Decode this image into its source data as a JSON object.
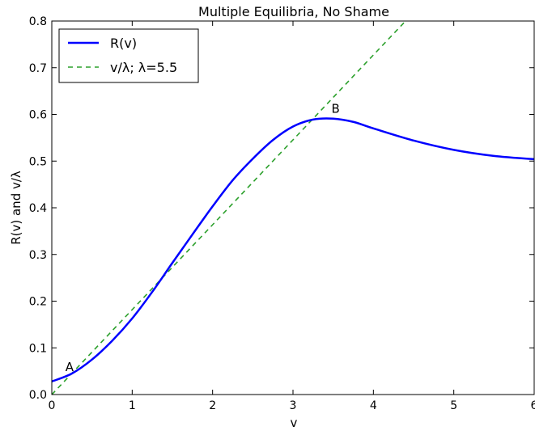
{
  "chart_data": {
    "type": "line",
    "title": "Multiple Equilibria, No Shame",
    "xlabel": "v",
    "ylabel": "R(v) and v/λ",
    "xlim": [
      0,
      6
    ],
    "ylim": [
      0,
      0.8
    ],
    "x_ticks": [
      0,
      1,
      2,
      3,
      4,
      5,
      6
    ],
    "x_tick_labels": [
      "0",
      "1",
      "2",
      "3",
      "4",
      "5",
      "6"
    ],
    "y_ticks": [
      0.0,
      0.1,
      0.2,
      0.3,
      0.4,
      0.5,
      0.6,
      0.7,
      0.8
    ],
    "y_tick_labels": [
      "0.0",
      "0.1",
      "0.2",
      "0.3",
      "0.4",
      "0.5",
      "0.6",
      "0.7",
      "0.8"
    ],
    "grid": false,
    "legend_position": "top-left",
    "series": [
      {
        "name": "R(v)",
        "color": "#0000ff",
        "style": "solid",
        "x": [
          0,
          0.25,
          0.5,
          0.75,
          1.0,
          1.25,
          1.5,
          1.75,
          2.0,
          2.25,
          2.5,
          2.75,
          3.0,
          3.25,
          3.5,
          3.75,
          4.0,
          4.5,
          5.0,
          5.5,
          6.0
        ],
        "y": [
          0.028,
          0.045,
          0.075,
          0.115,
          0.163,
          0.22,
          0.282,
          0.343,
          0.403,
          0.459,
          0.505,
          0.545,
          0.574,
          0.589,
          0.591,
          0.584,
          0.57,
          0.544,
          0.524,
          0.511,
          0.504
        ]
      },
      {
        "name": "v/λ; λ=5.5",
        "color": "#2ca02c",
        "style": "dashed",
        "x": [
          0,
          4.4
        ],
        "y": [
          0,
          0.8
        ]
      }
    ],
    "annotations": [
      {
        "text": "A",
        "x": 0.22,
        "y": 0.04
      },
      {
        "text": "B",
        "x": 3.53,
        "y": 0.593
      }
    ]
  }
}
